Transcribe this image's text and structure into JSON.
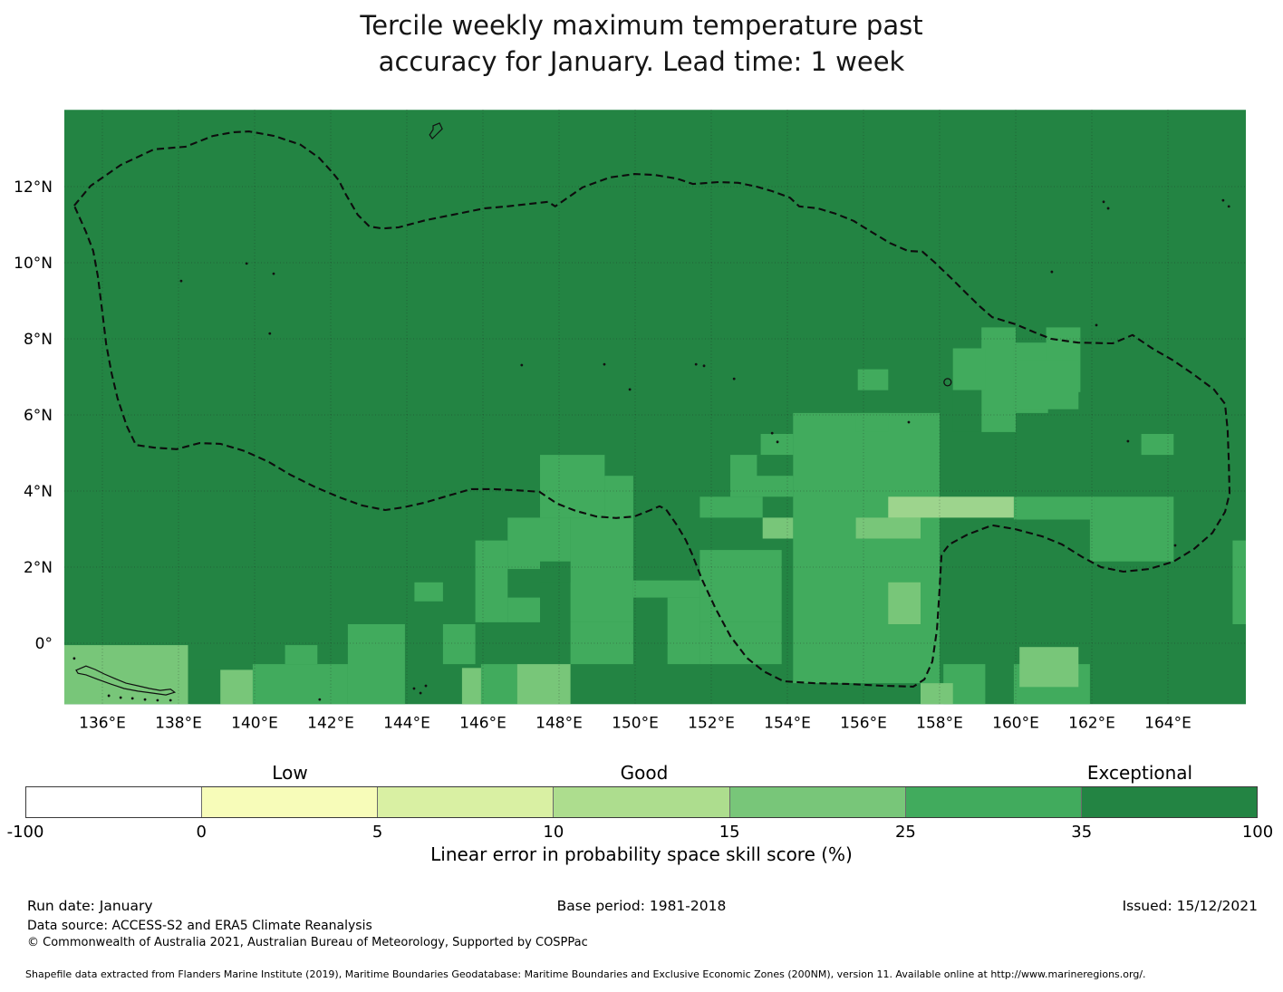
{
  "title": {
    "line1": "Tercile weekly maximum temperature past",
    "line2": "accuracy for January. Lead time: 1 week"
  },
  "colorbar": {
    "class_labels": [
      "Low",
      "Good",
      "Exceptional"
    ],
    "segments": [
      {
        "color": "#ffffff"
      },
      {
        "color": "#f7fcb9"
      },
      {
        "color": "#d9f0a3"
      },
      {
        "color": "#addd8e"
      },
      {
        "color": "#78c679"
      },
      {
        "color": "#41ab5d"
      },
      {
        "color": "#238443"
      }
    ],
    "ticks": [
      "-100",
      "0",
      "5",
      "10",
      "15",
      "25",
      "35",
      "100"
    ],
    "caption": "Linear error in probability space skill score (%)"
  },
  "footer": {
    "run_date": "Run date: January",
    "base_period": "Base period: 1981-2018",
    "issued": "Issued: 15/12/2021",
    "data_source": "Data source: ACCESS-S2 and ERA5 Climate Reanalysis",
    "copyright": "© Commonwealth of Australia 2021, Australian Bureau of Meteorology, Supported by COSPPac",
    "shapefile": "Shapefile data extracted from Flanders Marine Institute (2019), Maritime Boundaries Geodatabase: Maritime Boundaries and Exclusive Economic Zones (200NM), version 11. Available online at http://www.marineregions.org/."
  },
  "chart_data": {
    "type": "heatmap",
    "title": "Tercile weekly maximum temperature past accuracy for January. Lead time: 1 week",
    "value_label": "Linear error in probability space skill score (%)",
    "axes": {
      "lon_min": 135.0,
      "lon_max": 166.05,
      "lat_min": -1.605,
      "lat_max": 14.02,
      "grid": true,
      "lon_ticks": [
        {
          "v": 136,
          "label": "136°E"
        },
        {
          "v": 138,
          "label": "138°E"
        },
        {
          "v": 140,
          "label": "140°E"
        },
        {
          "v": 142,
          "label": "142°E"
        },
        {
          "v": 144,
          "label": "144°E"
        },
        {
          "v": 146,
          "label": "146°E"
        },
        {
          "v": 148,
          "label": "148°E"
        },
        {
          "v": 150,
          "label": "150°E"
        },
        {
          "v": 152,
          "label": "152°E"
        },
        {
          "v": 154,
          "label": "154°E"
        },
        {
          "v": 156,
          "label": "156°E"
        },
        {
          "v": 158,
          "label": "158°E"
        },
        {
          "v": 160,
          "label": "160°E"
        },
        {
          "v": 162,
          "label": "162°E"
        },
        {
          "v": 164,
          "label": "164°E"
        }
      ],
      "lat_ticks": [
        {
          "v": 12,
          "label": "12°N"
        },
        {
          "v": 10,
          "label": "10°N"
        },
        {
          "v": 8,
          "label": "8°N"
        },
        {
          "v": 6,
          "label": "6°N"
        },
        {
          "v": 4,
          "label": "4°N"
        },
        {
          "v": 2,
          "label": "2°N"
        },
        {
          "v": 0,
          "label": "0°"
        }
      ]
    },
    "levels": {
      "D": "#238443",
      "M": "#41ab5d",
      "L": "#78c679",
      "XL": "#9dd48d"
    },
    "level_ranges": {
      "D": "35 to 100",
      "M": "25 to 35",
      "L": "15 to 25",
      "XL": "10 to 15"
    },
    "base": "D",
    "cells": [
      [
        "M",
        154.15,
        -1.05,
        158.0,
        6.05
      ],
      [
        "M",
        159.1,
        5.55,
        160.0,
        8.3
      ],
      [
        "M",
        158.35,
        6.65,
        159.2,
        7.75
      ],
      [
        "M",
        159.95,
        6.05,
        160.85,
        7.9
      ],
      [
        "M",
        160.8,
        6.6,
        161.7,
        8.3
      ],
      [
        "M",
        155.85,
        6.65,
        156.65,
        7.2
      ],
      [
        "M",
        160.05,
        6.15,
        161.65,
        7.45
      ],
      [
        "D",
        158.35,
        5.55,
        159.1,
        6.65
      ],
      [
        "M",
        155.8,
        5.55,
        156.65,
        6.05
      ],
      [
        "M",
        153.3,
        4.95,
        154.15,
        5.5
      ],
      [
        "M",
        152.5,
        3.85,
        154.15,
        4.95
      ],
      [
        "D",
        153.2,
        4.4,
        154.15,
        4.95
      ],
      [
        "M",
        151.7,
        3.3,
        153.35,
        3.85
      ],
      [
        "M",
        147.5,
        3.3,
        149.2,
        4.95
      ],
      [
        "M",
        149.2,
        3.3,
        149.95,
        4.4
      ],
      [
        "M",
        146.65,
        1.95,
        148.3,
        3.3
      ],
      [
        "M",
        145.8,
        0.55,
        146.65,
        2.7
      ],
      [
        "M",
        148.3,
        0.55,
        149.95,
        3.3
      ],
      [
        "D",
        147.5,
        1.6,
        148.3,
        2.15
      ],
      [
        "M",
        149.95,
        1.2,
        151.7,
        1.65
      ],
      [
        "M",
        150.85,
        -0.55,
        151.7,
        1.2
      ],
      [
        "M",
        151.7,
        0.55,
        153.85,
        2.45
      ],
      [
        "M",
        151.7,
        -0.55,
        153.85,
        0.55
      ],
      [
        "M",
        161.95,
        2.15,
        164.15,
        3.85
      ],
      [
        "M",
        159.95,
        3.25,
        162.05,
        3.85
      ],
      [
        "M",
        165.7,
        0.5,
        166.05,
        2.7
      ],
      [
        "M",
        163.3,
        4.95,
        164.15,
        5.5
      ],
      [
        "M",
        142.45,
        -1.6,
        143.95,
        0.5
      ],
      [
        "M",
        140.8,
        -0.55,
        141.65,
        -0.05
      ],
      [
        "M",
        144.95,
        -0.55,
        145.8,
        0.5
      ],
      [
        "M",
        148.3,
        -0.55,
        149.95,
        0.55
      ],
      [
        "M",
        146.65,
        0.55,
        147.5,
        1.2
      ],
      [
        "M",
        139.95,
        -1.6,
        142.45,
        -0.55
      ],
      [
        "M",
        145.95,
        -1.6,
        146.9,
        -0.55
      ],
      [
        "M",
        158.1,
        -1.6,
        159.2,
        -0.55
      ],
      [
        "M",
        159.95,
        -1.6,
        161.95,
        -0.55
      ],
      [
        "M",
        144.2,
        1.1,
        144.95,
        1.6
      ],
      [
        "L",
        135.0,
        -1.6,
        138.25,
        -0.05
      ],
      [
        "D",
        138.3,
        -1.6,
        139.1,
        -0.7
      ],
      [
        "L",
        139.1,
        -1.6,
        139.95,
        -0.7
      ],
      [
        "L",
        145.45,
        -1.6,
        145.95,
        -0.65
      ],
      [
        "L",
        146.9,
        -1.6,
        148.3,
        -0.55
      ],
      [
        "L",
        153.35,
        2.75,
        154.15,
        3.3
      ],
      [
        "L",
        155.8,
        2.75,
        157.5,
        3.3
      ],
      [
        "L",
        156.65,
        0.5,
        157.5,
        1.6
      ],
      [
        "L",
        157.5,
        -1.6,
        158.35,
        -1.05
      ],
      [
        "L",
        160.1,
        -1.15,
        161.65,
        -0.1
      ],
      [
        "XL",
        156.65,
        3.3,
        159.95,
        3.85
      ]
    ],
    "eez_boundary": [
      [
        135.26,
        11.5
      ],
      [
        135.69,
        12.02
      ],
      [
        136.48,
        12.57
      ],
      [
        137.36,
        12.98
      ],
      [
        138.19,
        13.05
      ],
      [
        138.9,
        13.33
      ],
      [
        139.45,
        13.43
      ],
      [
        139.86,
        13.45
      ],
      [
        140.52,
        13.33
      ],
      [
        141.21,
        13.1
      ],
      [
        141.69,
        12.76
      ],
      [
        142.02,
        12.4
      ],
      [
        142.21,
        12.17
      ],
      [
        142.4,
        11.79
      ],
      [
        142.71,
        11.26
      ],
      [
        143.02,
        10.95
      ],
      [
        143.36,
        10.9
      ],
      [
        143.79,
        10.93
      ],
      [
        144.5,
        11.12
      ],
      [
        145.45,
        11.31
      ],
      [
        146.05,
        11.43
      ],
      [
        146.64,
        11.48
      ],
      [
        147.71,
        11.6
      ],
      [
        147.9,
        11.48
      ],
      [
        148.62,
        11.98
      ],
      [
        149.33,
        12.24
      ],
      [
        149.98,
        12.33
      ],
      [
        150.5,
        12.31
      ],
      [
        151.1,
        12.21
      ],
      [
        151.52,
        12.07
      ],
      [
        152.19,
        12.12
      ],
      [
        152.71,
        12.1
      ],
      [
        153.19,
        12.0
      ],
      [
        153.6,
        11.88
      ],
      [
        154.07,
        11.71
      ],
      [
        154.31,
        11.48
      ],
      [
        154.79,
        11.43
      ],
      [
        155.26,
        11.29
      ],
      [
        155.74,
        11.1
      ],
      [
        156.21,
        10.81
      ],
      [
        156.69,
        10.52
      ],
      [
        157.17,
        10.31
      ],
      [
        157.55,
        10.29
      ],
      [
        157.88,
        10.0
      ],
      [
        158.38,
        9.52
      ],
      [
        158.71,
        9.19
      ],
      [
        159.05,
        8.86
      ],
      [
        159.38,
        8.57
      ],
      [
        160.0,
        8.38
      ],
      [
        160.57,
        8.14
      ],
      [
        160.93,
        8.0
      ],
      [
        161.64,
        7.9
      ],
      [
        162.55,
        7.88
      ],
      [
        163.07,
        8.1
      ],
      [
        163.6,
        7.74
      ],
      [
        164.14,
        7.43
      ],
      [
        164.67,
        7.07
      ],
      [
        165.21,
        6.67
      ],
      [
        165.5,
        6.29
      ],
      [
        165.57,
        5.6
      ],
      [
        165.6,
        4.76
      ],
      [
        165.62,
        3.93
      ],
      [
        165.5,
        3.45
      ],
      [
        165.17,
        2.9
      ],
      [
        164.69,
        2.48
      ],
      [
        164.14,
        2.14
      ],
      [
        163.5,
        1.95
      ],
      [
        162.83,
        1.88
      ],
      [
        162.24,
        2.0
      ],
      [
        161.76,
        2.26
      ],
      [
        161.21,
        2.6
      ],
      [
        160.69,
        2.81
      ],
      [
        159.98,
        3.0
      ],
      [
        159.38,
        3.1
      ],
      [
        158.74,
        2.86
      ],
      [
        158.26,
        2.6
      ],
      [
        158.05,
        2.33
      ],
      [
        158.0,
        1.43
      ],
      [
        157.93,
        0.36
      ],
      [
        157.81,
        -0.48
      ],
      [
        157.6,
        -0.95
      ],
      [
        157.31,
        -1.14
      ],
      [
        156.52,
        -1.12
      ],
      [
        155.57,
        -1.07
      ],
      [
        154.69,
        -1.05
      ],
      [
        153.9,
        -1.0
      ],
      [
        153.38,
        -0.74
      ],
      [
        152.93,
        -0.38
      ],
      [
        152.5,
        0.19
      ],
      [
        152.12,
        0.9
      ],
      [
        151.76,
        1.67
      ],
      [
        151.5,
        2.33
      ],
      [
        151.33,
        2.71
      ],
      [
        151.1,
        3.1
      ],
      [
        150.81,
        3.52
      ],
      [
        150.64,
        3.6
      ],
      [
        150.36,
        3.48
      ],
      [
        149.98,
        3.33
      ],
      [
        149.5,
        3.29
      ],
      [
        148.98,
        3.33
      ],
      [
        148.43,
        3.48
      ],
      [
        147.95,
        3.67
      ],
      [
        147.48,
        3.98
      ],
      [
        146.88,
        4.02
      ],
      [
        146.29,
        4.05
      ],
      [
        145.69,
        4.05
      ],
      [
        145.1,
        3.88
      ],
      [
        144.45,
        3.69
      ],
      [
        143.9,
        3.57
      ],
      [
        143.43,
        3.5
      ],
      [
        142.83,
        3.62
      ],
      [
        142.24,
        3.83
      ],
      [
        141.6,
        4.1
      ],
      [
        140.93,
        4.43
      ],
      [
        140.38,
        4.76
      ],
      [
        139.74,
        5.05
      ],
      [
        139.1,
        5.24
      ],
      [
        138.55,
        5.26
      ],
      [
        137.95,
        5.1
      ],
      [
        137.36,
        5.14
      ],
      [
        136.88,
        5.21
      ],
      [
        136.64,
        5.71
      ],
      [
        136.4,
        6.43
      ],
      [
        136.24,
        7.1
      ],
      [
        136.1,
        7.86
      ],
      [
        136.0,
        8.69
      ],
      [
        135.88,
        9.64
      ],
      [
        135.76,
        10.31
      ],
      [
        135.57,
        10.81
      ]
    ],
    "islands": {
      "outlines": [
        [
          [
            144.69,
            13.6
          ],
          [
            144.86,
            13.67
          ],
          [
            144.93,
            13.52
          ],
          [
            144.79,
            13.38
          ],
          [
            144.67,
            13.26
          ],
          [
            144.6,
            13.36
          ],
          [
            144.69,
            13.5
          ]
        ],
        [
          [
            135.31,
            -0.71
          ],
          [
            135.57,
            -0.6
          ],
          [
            135.81,
            -0.69
          ],
          [
            136.05,
            -0.81
          ],
          [
            136.33,
            -0.93
          ],
          [
            136.62,
            -1.05
          ],
          [
            136.93,
            -1.12
          ],
          [
            137.24,
            -1.19
          ],
          [
            137.52,
            -1.24
          ],
          [
            137.79,
            -1.21
          ],
          [
            137.9,
            -1.29
          ],
          [
            137.67,
            -1.36
          ],
          [
            137.31,
            -1.31
          ],
          [
            136.93,
            -1.26
          ],
          [
            136.57,
            -1.19
          ],
          [
            136.21,
            -1.07
          ],
          [
            135.88,
            -0.95
          ],
          [
            135.57,
            -0.83
          ],
          [
            135.36,
            -0.79
          ]
        ]
      ],
      "dots": [
        [
          135.26,
          -0.4
        ],
        [
          136.17,
          -1.38
        ],
        [
          136.48,
          -1.43
        ],
        [
          136.79,
          -1.45
        ],
        [
          137.12,
          -1.48
        ],
        [
          137.45,
          -1.5
        ],
        [
          137.79,
          -1.5
        ],
        [
          138.07,
          9.52
        ],
        [
          139.79,
          9.98
        ],
        [
          140.5,
          9.71
        ],
        [
          140.4,
          8.14
        ],
        [
          144.19,
          -1.19
        ],
        [
          144.36,
          -1.31
        ],
        [
          144.5,
          -1.12
        ],
        [
          141.71,
          -1.48
        ],
        [
          147.02,
          7.31
        ],
        [
          149.19,
          7.33
        ],
        [
          149.86,
          6.67
        ],
        [
          151.6,
          7.33
        ],
        [
          151.81,
          7.29
        ],
        [
          153.6,
          5.52
        ],
        [
          153.74,
          5.29
        ],
        [
          152.6,
          6.95
        ],
        [
          157.19,
          5.81
        ],
        [
          160.95,
          9.76
        ],
        [
          162.12,
          8.36
        ],
        [
          162.31,
          11.6
        ],
        [
          162.43,
          11.43
        ],
        [
          165.45,
          11.64
        ],
        [
          165.6,
          11.48
        ],
        [
          162.95,
          5.31
        ],
        [
          164.19,
          2.57
        ]
      ],
      "rings": [
        {
          "lon": 158.21,
          "lat": 6.86,
          "r": 4
        }
      ]
    }
  }
}
